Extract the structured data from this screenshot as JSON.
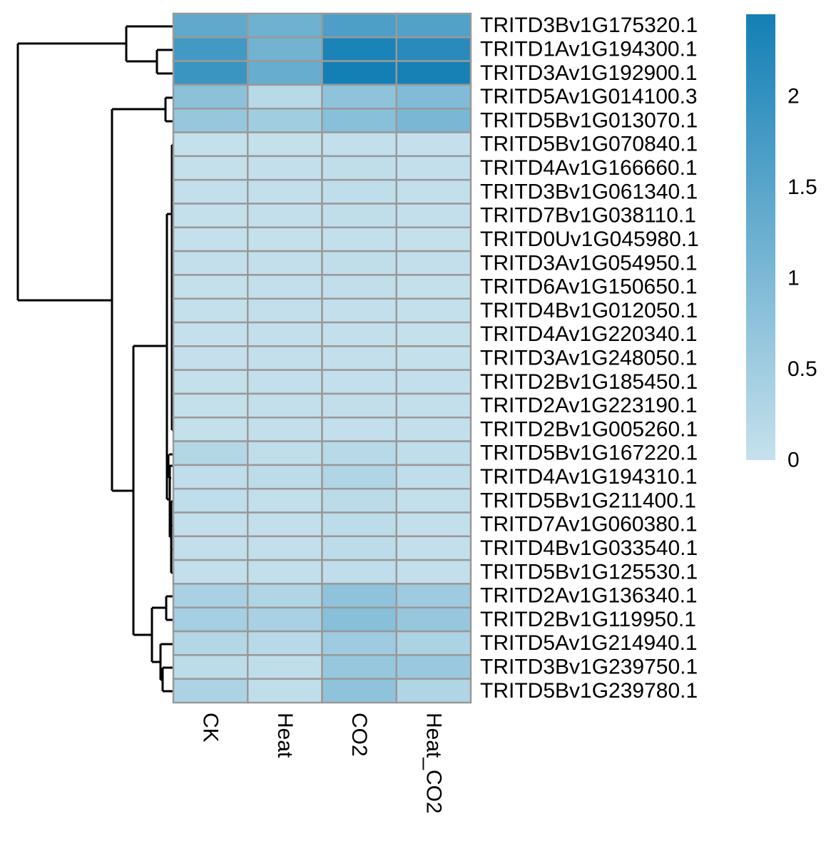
{
  "chart_data": {
    "type": "heatmap",
    "columns": [
      "CK",
      "Heat",
      "CO2",
      "Heat_CO2"
    ],
    "rows": [
      "TRITD3Bv1G175320.1",
      "TRITD1Av1G194300.1",
      "TRITD3Av1G192900.1",
      "TRITD5Av1G014100.3",
      "TRITD5Bv1G013070.1",
      "TRITD5Bv1G070840.1",
      "TRITD4Av1G166660.1",
      "TRITD3Bv1G061340.1",
      "TRITD7Bv1G038110.1",
      "TRITD0Uv1G045980.1",
      "TRITD3Av1G054950.1",
      "TRITD6Av1G150650.1",
      "TRITD4Bv1G012050.1",
      "TRITD4Av1G220340.1",
      "TRITD3Av1G248050.1",
      "TRITD2Bv1G185450.1",
      "TRITD2Av1G223190.1",
      "TRITD2Bv1G005260.1",
      "TRITD5Bv1G167220.1",
      "TRITD4Av1G194310.1",
      "TRITD5Bv1G211400.1",
      "TRITD7Av1G060380.1",
      "TRITD4Bv1G033540.1",
      "TRITD5Bv1G125530.1",
      "TRITD2Av1G136340.1",
      "TRITD2Bv1G119950.1",
      "TRITD5Av1G214940.1",
      "TRITD3Bv1G239750.1",
      "TRITD5Bv1G239780.1"
    ],
    "values": [
      [
        1.4,
        1.2,
        1.65,
        1.6
      ],
      [
        1.8,
        1.15,
        2.35,
        2.15
      ],
      [
        1.9,
        1.3,
        2.45,
        2.4
      ],
      [
        0.8,
        0.2,
        0.75,
        0.95
      ],
      [
        0.65,
        0.5,
        0.85,
        1.05
      ],
      [
        0.03,
        0.03,
        0.06,
        0.02
      ],
      [
        0.03,
        0.04,
        0.08,
        0.04
      ],
      [
        0.05,
        0.06,
        0.1,
        0.05
      ],
      [
        0.03,
        0.05,
        0.08,
        0.04
      ],
      [
        0.02,
        0.03,
        0.05,
        0.03
      ],
      [
        0.04,
        0.06,
        0.08,
        0.04
      ],
      [
        0.03,
        0.05,
        0.07,
        0.03
      ],
      [
        0.03,
        0.05,
        0.06,
        0.03
      ],
      [
        0.02,
        0.04,
        0.06,
        0.03
      ],
      [
        0.02,
        0.04,
        0.06,
        0.03
      ],
      [
        0.03,
        0.05,
        0.06,
        0.04
      ],
      [
        0.03,
        0.05,
        0.07,
        0.04
      ],
      [
        0.03,
        0.05,
        0.06,
        0.04
      ],
      [
        0.25,
        0.08,
        0.2,
        0.1
      ],
      [
        0.1,
        0.12,
        0.3,
        0.1
      ],
      [
        0.1,
        0.06,
        0.15,
        0.05
      ],
      [
        0.05,
        0.05,
        0.12,
        0.04
      ],
      [
        0.05,
        0.05,
        0.12,
        0.04
      ],
      [
        0.05,
        0.05,
        0.1,
        0.04
      ],
      [
        0.4,
        0.3,
        0.75,
        0.55
      ],
      [
        0.45,
        0.4,
        0.85,
        0.65
      ],
      [
        0.25,
        0.2,
        0.55,
        0.35
      ],
      [
        0.12,
        0.08,
        0.65,
        0.6
      ],
      [
        0.35,
        0.08,
        0.75,
        0.3
      ]
    ],
    "color_scale": {
      "min": 0,
      "max": 2.45,
      "low_color": "#c6e1ec",
      "high_color": "#137fb5",
      "ticks": [
        {
          "value": 0,
          "label": "0"
        },
        {
          "value": 0.5,
          "label": "0.5"
        },
        {
          "value": 1,
          "label": "1"
        },
        {
          "value": 1.5,
          "label": "1.5"
        },
        {
          "value": 2,
          "label": "2"
        }
      ]
    },
    "cell_border_color": "#999999",
    "dendrogram": "row clustering, drawn to the left of the heatmap"
  }
}
